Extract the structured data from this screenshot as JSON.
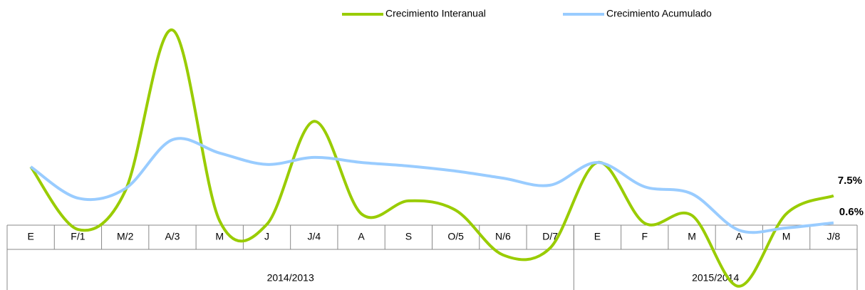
{
  "chart_data": {
    "type": "line",
    "categories": [
      "E",
      "F/1",
      "M/2",
      "A/3",
      "M",
      "J",
      "J/4",
      "A",
      "S",
      "O/5",
      "N/6",
      "D/7",
      "E",
      "F",
      "M",
      "A",
      "M",
      "J/8"
    ],
    "groups": [
      {
        "label": "2014/2013",
        "span": 12
      },
      {
        "label": "2015/2014",
        "span": 6
      }
    ],
    "series": [
      {
        "name": "Crecimiento Interanual",
        "color": "#99cc00",
        "values": [
          14.9,
          -1.1,
          8.7,
          49.8,
          1.1,
          0.2,
          26.5,
          2.9,
          6.2,
          3.8,
          -7.6,
          -5.8,
          16.0,
          0.5,
          2.5,
          -15.6,
          2.9,
          7.5
        ],
        "value_labels": [
          null,
          null,
          null,
          null,
          null,
          null,
          null,
          null,
          null,
          null,
          null,
          null,
          null,
          null,
          null,
          null,
          null,
          "7.5%"
        ]
      },
      {
        "name": "Crecimiento Acumulado",
        "color": "#99ccff",
        "values": [
          14.9,
          6.9,
          9.3,
          21.8,
          18.4,
          15.5,
          17.3,
          16.0,
          15.1,
          13.8,
          12.0,
          10.2,
          16.0,
          9.8,
          8.0,
          -1.3,
          -0.7,
          0.6
        ],
        "value_labels": [
          null,
          null,
          null,
          null,
          null,
          null,
          null,
          null,
          null,
          null,
          null,
          null,
          null,
          null,
          null,
          null,
          null,
          "0.6%"
        ]
      }
    ],
    "ylim": [
      -16,
      50
    ],
    "legend": "top"
  }
}
